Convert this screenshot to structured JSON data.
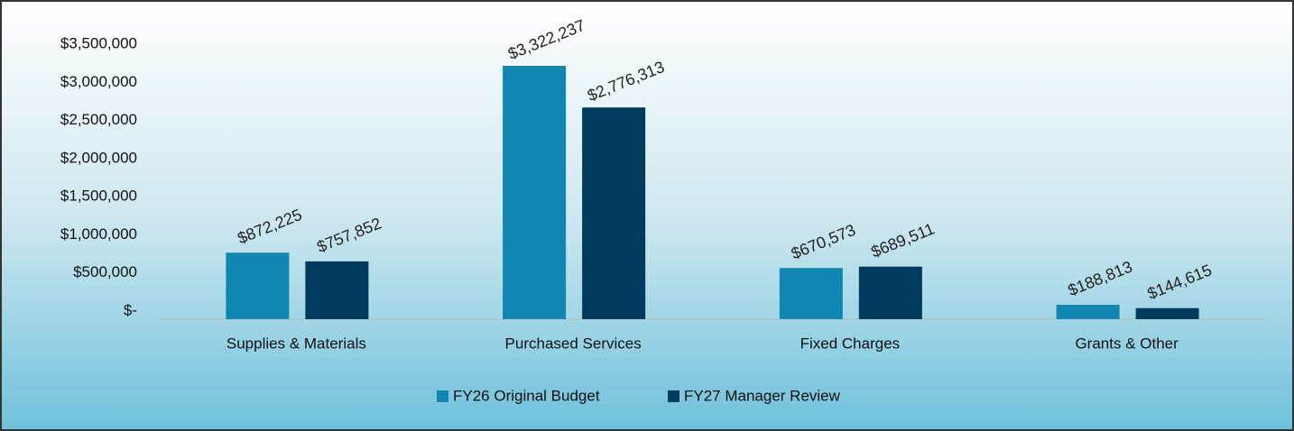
{
  "chart_data": {
    "type": "bar",
    "categories": [
      "Supplies & Materials",
      "Purchased Services",
      "Fixed Charges",
      "Grants & Other"
    ],
    "series": [
      {
        "name": "FY26 Original Budget",
        "color": "#1186b0",
        "values": [
          872225,
          3322237,
          670573,
          188813
        ],
        "value_labels": [
          "$872,225",
          "$3,322,237",
          "$670,573",
          "$188,813"
        ]
      },
      {
        "name": "FY27 Manager Review",
        "color": "#003a5c",
        "values": [
          757852,
          2776313,
          689511,
          144615
        ],
        "value_labels": [
          "$757,852",
          "$2,776,313",
          "$689,511",
          "$144,615"
        ]
      }
    ],
    "ylim": [
      0,
      3500000
    ],
    "yticks": [
      {
        "value": 0,
        "label": "$-"
      },
      {
        "value": 500000,
        "label": "$500,000"
      },
      {
        "value": 1000000,
        "label": "$1,000,000"
      },
      {
        "value": 1500000,
        "label": "$1,500,000"
      },
      {
        "value": 2000000,
        "label": "$2,000,000"
      },
      {
        "value": 2500000,
        "label": "$2,500,000"
      },
      {
        "value": 3000000,
        "label": "$3,000,000"
      },
      {
        "value": 3500000,
        "label": "$3,500,000"
      }
    ],
    "grid": false,
    "legend": "bottom"
  }
}
